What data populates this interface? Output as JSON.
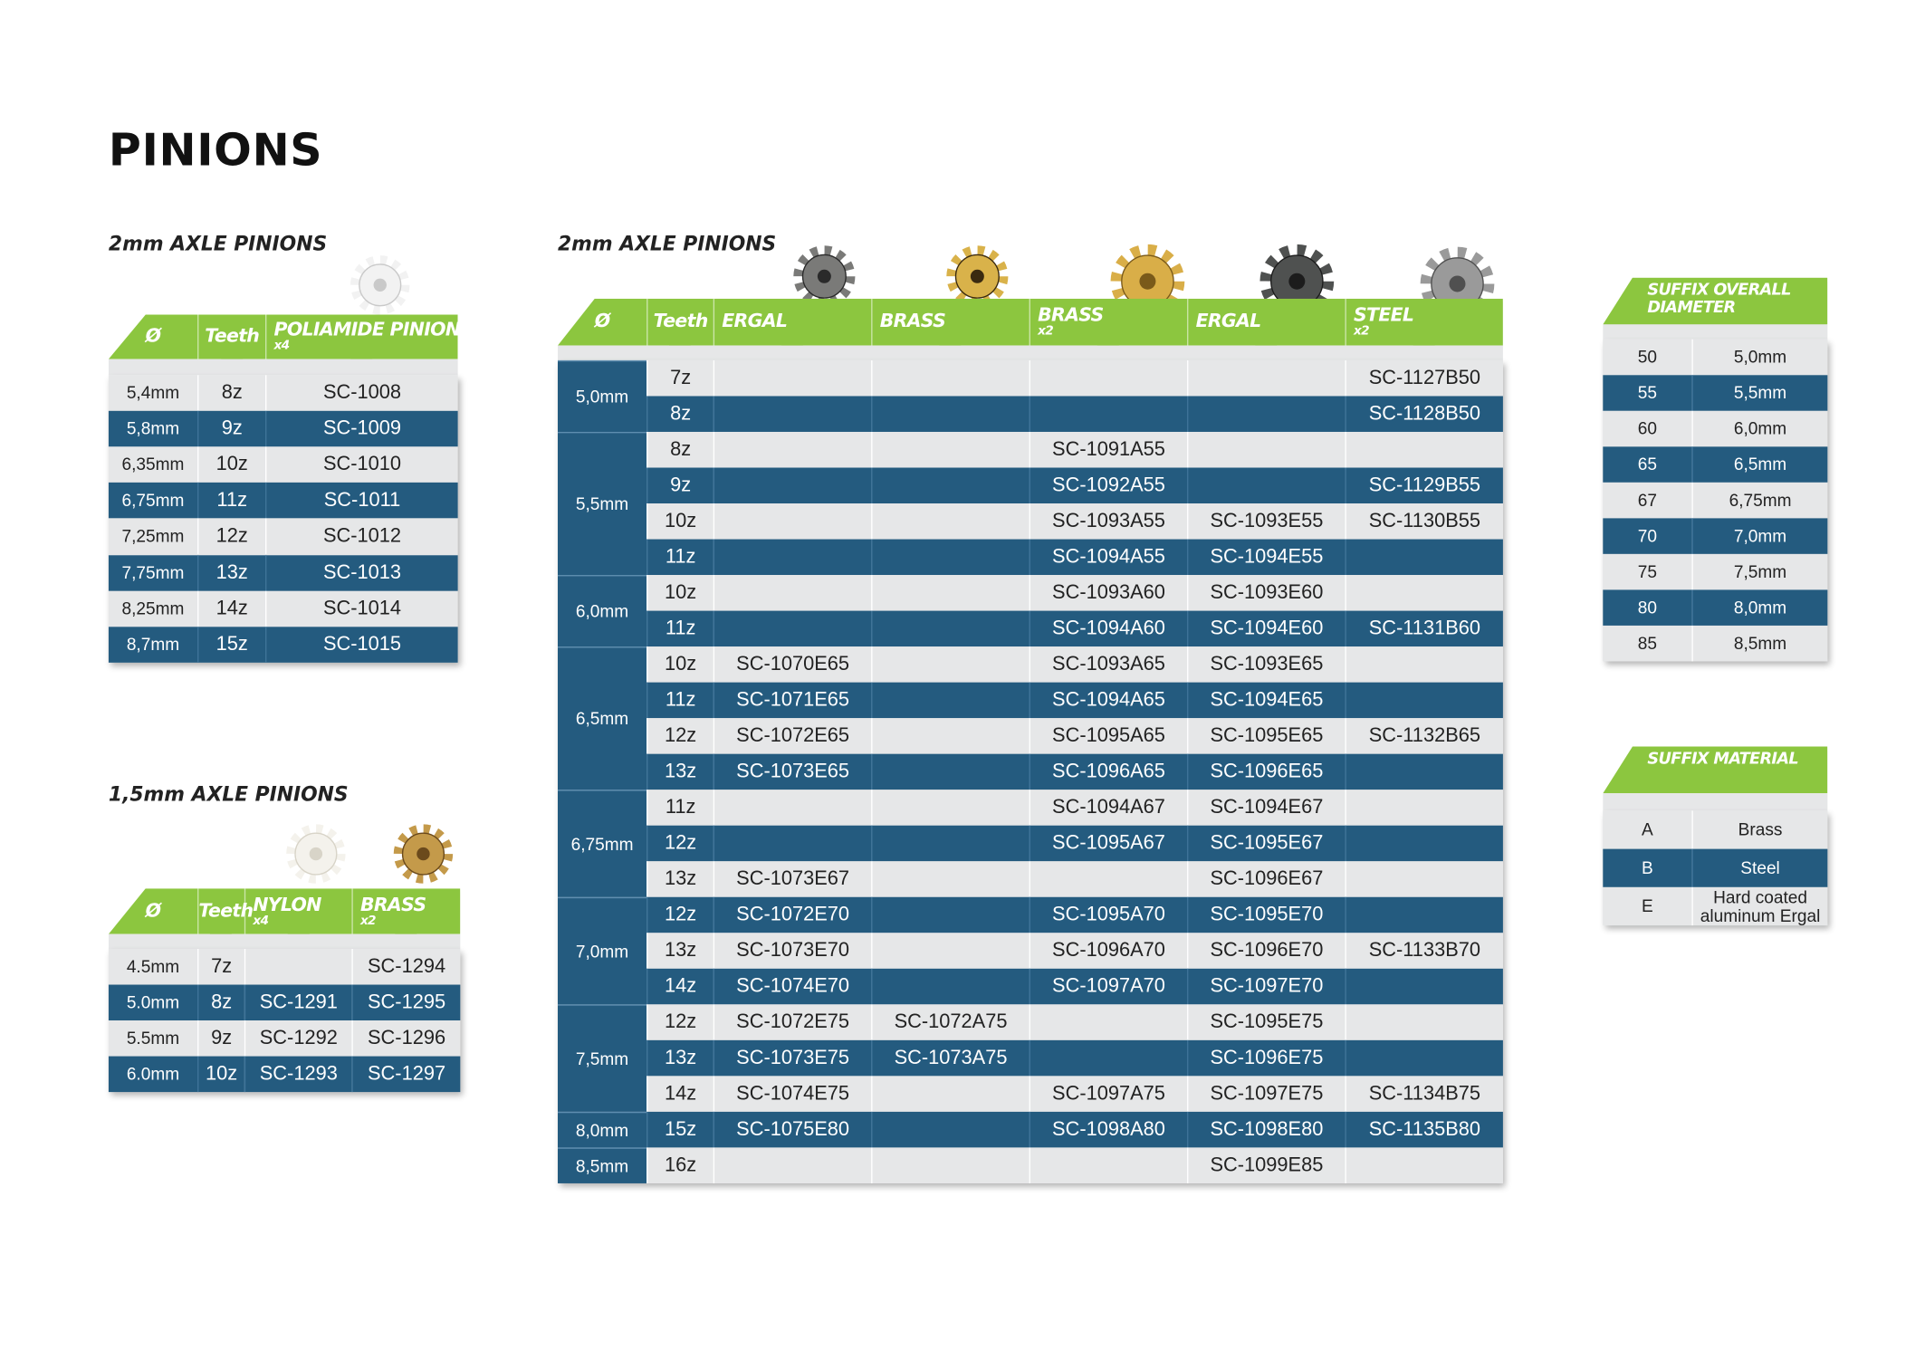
{
  "title": "PINIONS",
  "poliamide_table": {
    "title": "2mm AXLE PINIONS",
    "headers": [
      {
        "label": "Ø"
      },
      {
        "label": "Teeth"
      },
      {
        "label": "POLIAMIDE PINIONS",
        "note": "x4"
      }
    ],
    "rows": [
      [
        "5,4mm",
        "8z",
        "SC-1008"
      ],
      [
        "5,8mm",
        "9z",
        "SC-1009"
      ],
      [
        "6,35mm",
        "10z",
        "SC-1010"
      ],
      [
        "6,75mm",
        "11z",
        "SC-1011"
      ],
      [
        "7,25mm",
        "12z",
        "SC-1012"
      ],
      [
        "7,75mm",
        "13z",
        "SC-1013"
      ],
      [
        "8,25mm",
        "14z",
        "SC-1014"
      ],
      [
        "8,7mm",
        "15z",
        "SC-1015"
      ]
    ]
  },
  "small_axle_table": {
    "title": "1,5mm AXLE PINIONS",
    "headers": [
      {
        "label": "Ø"
      },
      {
        "label": "Teeth"
      },
      {
        "label": "NYLON",
        "note": "x4"
      },
      {
        "label": "BRASS",
        "note": "x2"
      }
    ],
    "rows": [
      [
        "4.5mm",
        "7z",
        null,
        "SC-1294"
      ],
      [
        "5.0mm",
        "8z",
        "SC-1291",
        "SC-1295"
      ],
      [
        "5.5mm",
        "9z",
        "SC-1292",
        "SC-1296"
      ],
      [
        "6.0mm",
        "10z",
        "SC-1293",
        "SC-1297"
      ]
    ]
  },
  "main_table": {
    "title": "2mm AXLE PINIONS",
    "headers": [
      {
        "label": "Ø"
      },
      {
        "label": "Teeth"
      },
      {
        "label": "ERGAL"
      },
      {
        "label": "BRASS"
      },
      {
        "label": "BRASS",
        "note": "x2"
      },
      {
        "label": "ERGAL"
      },
      {
        "label": "STEEL",
        "note": "x2"
      }
    ],
    "groups": [
      {
        "diameter": "5,0mm",
        "rows": [
          {
            "teeth": "7z",
            "codes": [
              null,
              null,
              null,
              null,
              "SC-1127B50"
            ]
          },
          {
            "teeth": "8z",
            "codes": [
              null,
              null,
              null,
              null,
              "SC-1128B50"
            ]
          }
        ]
      },
      {
        "diameter": "5,5mm",
        "rows": [
          {
            "teeth": "8z",
            "codes": [
              null,
              null,
              "SC-1091A55",
              null,
              null
            ]
          },
          {
            "teeth": "9z",
            "codes": [
              null,
              null,
              "SC-1092A55",
              null,
              "SC-1129B55"
            ]
          },
          {
            "teeth": "10z",
            "codes": [
              null,
              null,
              "SC-1093A55",
              "SC-1093E55",
              "SC-1130B55"
            ]
          },
          {
            "teeth": "11z",
            "codes": [
              null,
              null,
              "SC-1094A55",
              "SC-1094E55",
              null
            ]
          }
        ]
      },
      {
        "diameter": "6,0mm",
        "rows": [
          {
            "teeth": "10z",
            "codes": [
              null,
              null,
              "SC-1093A60",
              "SC-1093E60",
              null
            ]
          },
          {
            "teeth": "11z",
            "codes": [
              null,
              null,
              "SC-1094A60",
              "SC-1094E60",
              "SC-1131B60"
            ]
          }
        ]
      },
      {
        "diameter": "6,5mm",
        "rows": [
          {
            "teeth": "10z",
            "codes": [
              "SC-1070E65",
              null,
              "SC-1093A65",
              "SC-1093E65",
              null
            ]
          },
          {
            "teeth": "11z",
            "codes": [
              "SC-1071E65",
              null,
              "SC-1094A65",
              "SC-1094E65",
              null
            ]
          },
          {
            "teeth": "12z",
            "codes": [
              "SC-1072E65",
              null,
              "SC-1095A65",
              "SC-1095E65",
              "SC-1132B65"
            ]
          },
          {
            "teeth": "13z",
            "codes": [
              "SC-1073E65",
              null,
              "SC-1096A65",
              "SC-1096E65",
              null
            ]
          }
        ]
      },
      {
        "diameter": "6,75mm",
        "rows": [
          {
            "teeth": "11z",
            "codes": [
              null,
              null,
              "SC-1094A67",
              "SC-1094E67",
              null
            ]
          },
          {
            "teeth": "12z",
            "codes": [
              null,
              null,
              "SC-1095A67",
              "SC-1095E67",
              null
            ]
          },
          {
            "teeth": "13z",
            "codes": [
              "SC-1073E67",
              null,
              null,
              "SC-1096E67",
              null
            ]
          }
        ]
      },
      {
        "diameter": "7,0mm",
        "rows": [
          {
            "teeth": "12z",
            "codes": [
              "SC-1072E70",
              null,
              "SC-1095A70",
              "SC-1095E70",
              null
            ]
          },
          {
            "teeth": "13z",
            "codes": [
              "SC-1073E70",
              null,
              "SC-1096A70",
              "SC-1096E70",
              "SC-1133B70"
            ]
          },
          {
            "teeth": "14z",
            "codes": [
              "SC-1074E70",
              null,
              "SC-1097A70",
              "SC-1097E70",
              null
            ]
          }
        ]
      },
      {
        "diameter": "7,5mm",
        "rows": [
          {
            "teeth": "12z",
            "codes": [
              "SC-1072E75",
              "SC-1072A75",
              null,
              "SC-1095E75",
              null
            ]
          },
          {
            "teeth": "13z",
            "codes": [
              "SC-1073E75",
              "SC-1073A75",
              null,
              "SC-1096E75",
              null
            ]
          },
          {
            "teeth": "14z",
            "codes": [
              "SC-1074E75",
              null,
              "SC-1097A75",
              "SC-1097E75",
              "SC-1134B75"
            ]
          }
        ]
      },
      {
        "diameter": "8,0mm",
        "rows": [
          {
            "teeth": "15z",
            "codes": [
              "SC-1075E80",
              null,
              "SC-1098A80",
              "SC-1098E80",
              "SC-1135B80"
            ]
          }
        ]
      },
      {
        "diameter": "8,5mm",
        "rows": [
          {
            "teeth": "16z",
            "codes": [
              null,
              null,
              null,
              "SC-1099E85",
              null
            ]
          }
        ]
      }
    ]
  },
  "suffix_diameter_table": {
    "title": "SUFFIX OVERALL DIAMETER",
    "rows": [
      [
        "50",
        "5,0mm"
      ],
      [
        "55",
        "5,5mm"
      ],
      [
        "60",
        "6,0mm"
      ],
      [
        "65",
        "6,5mm"
      ],
      [
        "67",
        "6,75mm"
      ],
      [
        "70",
        "7,0mm"
      ],
      [
        "75",
        "7,5mm"
      ],
      [
        "80",
        "8,0mm"
      ],
      [
        "85",
        "8,5mm"
      ]
    ]
  },
  "suffix_material_table": {
    "title": "SUFFIX MATERIAL",
    "rows": [
      [
        "A",
        "Brass"
      ],
      [
        "B",
        "Steel"
      ],
      [
        "E",
        "Hard coated aluminum Ergal"
      ]
    ]
  }
}
